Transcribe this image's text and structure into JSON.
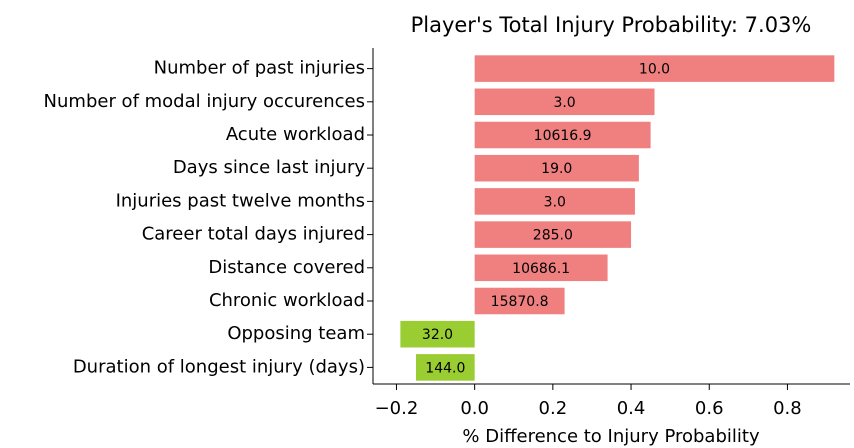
{
  "chart_data": {
    "type": "barh",
    "title": "Player's Total Injury Probability: 7.03%",
    "xlabel": "% Difference to Injury Probability",
    "categories": [
      "Number of past injuries",
      "Number of modal injury occurences",
      "Acute workload",
      "Days since last injury",
      "Injuries past twelve months",
      "Career total days injured",
      "Distance covered",
      "Chronic workload",
      "Opposing team",
      "Duration of longest injury (days)"
    ],
    "values": [
      0.92,
      0.46,
      0.45,
      0.42,
      0.41,
      0.4,
      0.34,
      0.23,
      -0.19,
      -0.15
    ],
    "feature_values": [
      "10.0",
      "3.0",
      "10616.9",
      "19.0",
      "3.0",
      "285.0",
      "10686.1",
      "15870.8",
      "32.0",
      "144.0"
    ],
    "colors": [
      "#f08080",
      "#f08080",
      "#f08080",
      "#f08080",
      "#f08080",
      "#f08080",
      "#f08080",
      "#f08080",
      "#9acd32",
      "#9acd32"
    ],
    "xlim": [
      -0.26,
      0.96
    ],
    "xticks": [
      {
        "value": -0.2,
        "label": "−0.2"
      },
      {
        "value": 0,
        "label": "0.0"
      },
      0.2,
      0.4,
      0.6,
      0.8
    ],
    "grid": false
  }
}
